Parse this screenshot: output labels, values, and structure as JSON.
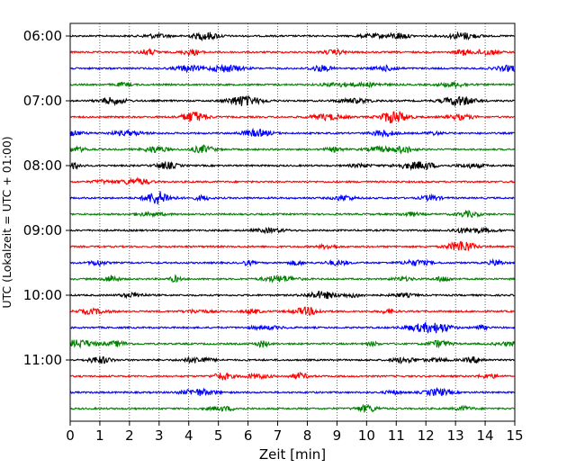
{
  "chart_data": {
    "type": "line",
    "title": "",
    "xlabel": "Zeit  [min]",
    "ylabel": "UTC (Lokalzeit = UTC + 01:00)",
    "xlim": [
      0,
      15
    ],
    "x_ticks": [
      "0",
      "1",
      "2",
      "3",
      "4",
      "5",
      "6",
      "7",
      "8",
      "9",
      "10",
      "11",
      "12",
      "13",
      "14",
      "15"
    ],
    "y_ticks": [
      "06:00",
      "07:00",
      "08:00",
      "09:00",
      "10:00",
      "11:00"
    ],
    "grid": "vertical dotted lines at each minute",
    "trace_interval_minutes": 15,
    "trace_color_cycle": [
      "#000000",
      "#ff0000",
      "#0000ff",
      "#008000"
    ],
    "traces": [
      {
        "start": "06:00"
      },
      {
        "start": "06:15"
      },
      {
        "start": "06:30"
      },
      {
        "start": "06:45"
      },
      {
        "start": "07:00"
      },
      {
        "start": "07:15"
      },
      {
        "start": "07:30"
      },
      {
        "start": "07:45"
      },
      {
        "start": "08:00"
      },
      {
        "start": "08:15"
      },
      {
        "start": "08:30"
      },
      {
        "start": "08:45"
      },
      {
        "start": "09:00"
      },
      {
        "start": "09:15"
      },
      {
        "start": "09:30"
      },
      {
        "start": "09:45"
      },
      {
        "start": "10:00"
      },
      {
        "start": "10:15"
      },
      {
        "start": "10:30"
      },
      {
        "start": "10:45"
      },
      {
        "start": "11:00"
      },
      {
        "start": "11:15"
      },
      {
        "start": "11:30"
      },
      {
        "start": "11:45"
      }
    ]
  }
}
